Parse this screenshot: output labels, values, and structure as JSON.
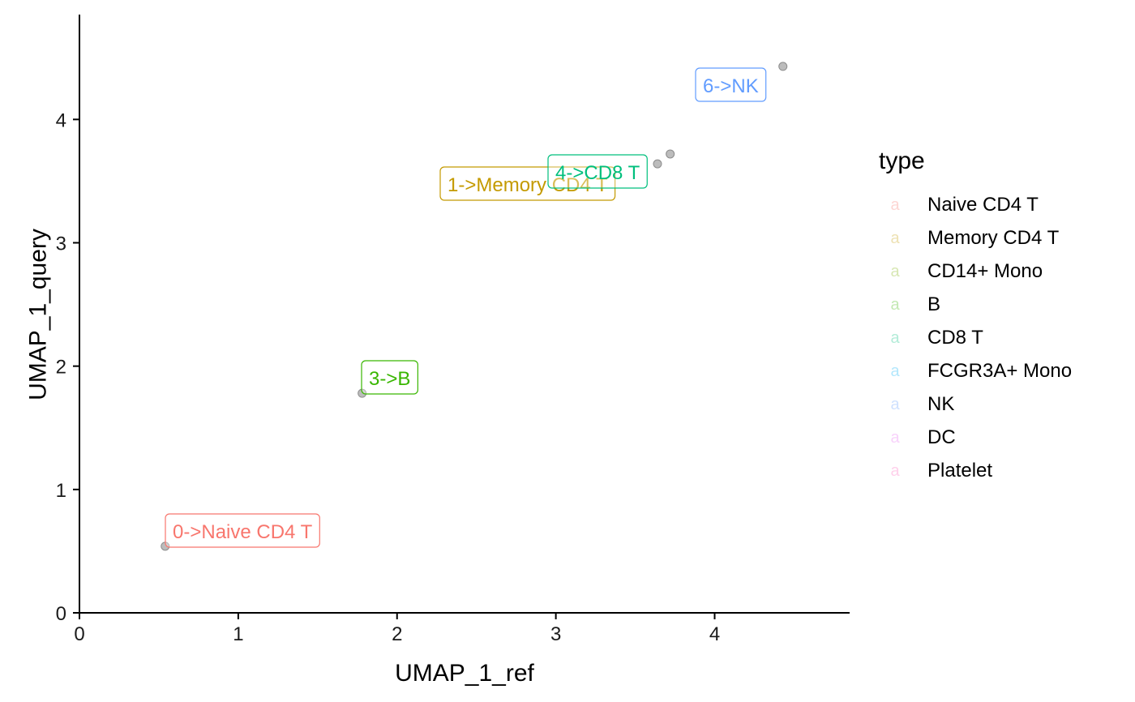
{
  "chart_data": {
    "type": "scatter",
    "xlabel": "UMAP_1_ref",
    "ylabel": "UMAP_1_query",
    "xlim": [
      0,
      4.85
    ],
    "ylim": [
      0,
      4.85
    ],
    "x_ticks": [
      "0",
      "1",
      "2",
      "3",
      "4"
    ],
    "y_ticks": [
      "0",
      "1",
      "2",
      "3",
      "4"
    ],
    "grid": false,
    "points": [
      {
        "x": 0.54,
        "y": 0.54,
        "label": "0->Naive CD4 T",
        "color": "#F8766D"
      },
      {
        "x": 1.78,
        "y": 1.78,
        "label": "3->B",
        "color": "#39B600"
      },
      {
        "x": 3.64,
        "y": 3.64,
        "label": "1->Memory CD4 T",
        "color": "#C49A00"
      },
      {
        "x": 3.72,
        "y": 3.72,
        "label": "4->CD8 T",
        "color": "#00BF7D"
      },
      {
        "x": 4.43,
        "y": 4.43,
        "label": "6->NK",
        "color": "#619CFF"
      }
    ],
    "legend": {
      "title": "type",
      "position": "right",
      "key_glyph": "a",
      "entries": [
        {
          "name": "Naive CD4 T",
          "color": "#F8766D"
        },
        {
          "name": "Memory CD4 T",
          "color": "#C49A00"
        },
        {
          "name": "CD14+ Mono",
          "color": "#7CAE00"
        },
        {
          "name": "B",
          "color": "#39B600"
        },
        {
          "name": "CD8 T",
          "color": "#00BF7D"
        },
        {
          "name": "FCGR3A+ Mono",
          "color": "#00B0F6"
        },
        {
          "name": "NK",
          "color": "#619CFF"
        },
        {
          "name": "DC",
          "color": "#E76BF3"
        },
        {
          "name": "Platelet",
          "color": "#FF62BC"
        }
      ]
    }
  }
}
